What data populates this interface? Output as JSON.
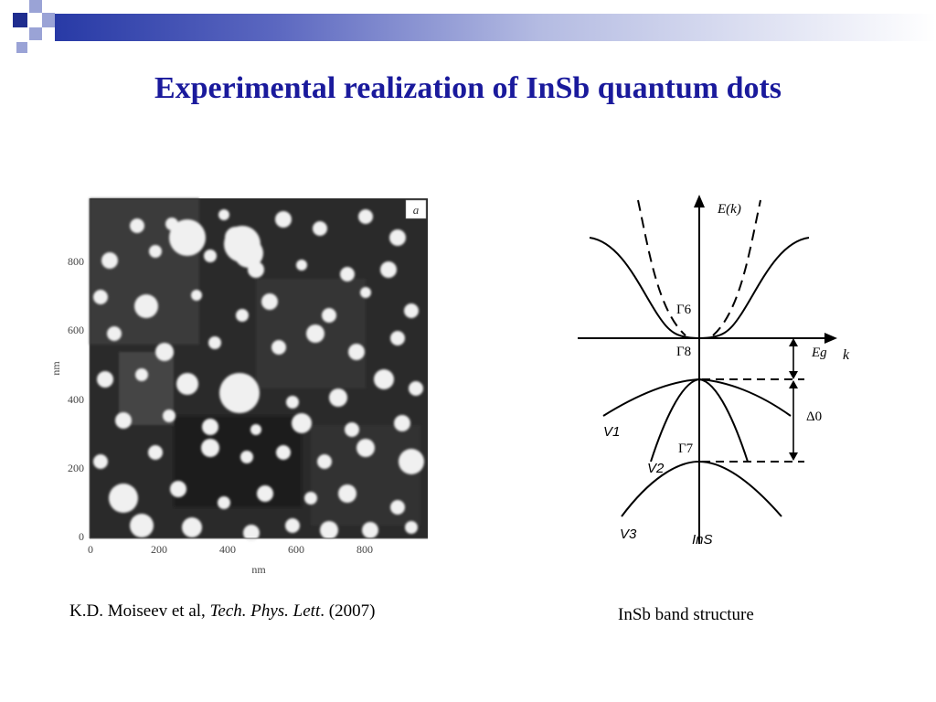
{
  "slide": {
    "title": "Experimental realization of InSb quantum dots"
  },
  "afm_image": {
    "panel_label": "a",
    "x_axis_label": "nm",
    "y_axis_label": "nm",
    "x_ticks": [
      "0",
      "200",
      "400",
      "600",
      "800"
    ],
    "y_ticks": [
      "0",
      "200",
      "400",
      "600",
      "800"
    ]
  },
  "band_diagram": {
    "energy_axis_label": "E(k)",
    "k_axis_label": "k",
    "gamma6_label": "Γ6",
    "gamma8_label": "Γ8",
    "gamma7_label": "Γ7",
    "gap_label": "Eg",
    "split_label": "Δ0",
    "v1_label": "V1",
    "v2_label": "V2",
    "v3_label": "V3",
    "material_label": "InS"
  },
  "captions": {
    "left_authors": "K.D. Moiseev et al, ",
    "left_journal": "Tech. Phys. Lett",
    "left_year": ". (2007)",
    "right": "InSb band structure"
  },
  "colors": {
    "title": "#1a1a9c",
    "accent_dark": "#1f2d8f",
    "accent_light": "#9aa3d6"
  }
}
